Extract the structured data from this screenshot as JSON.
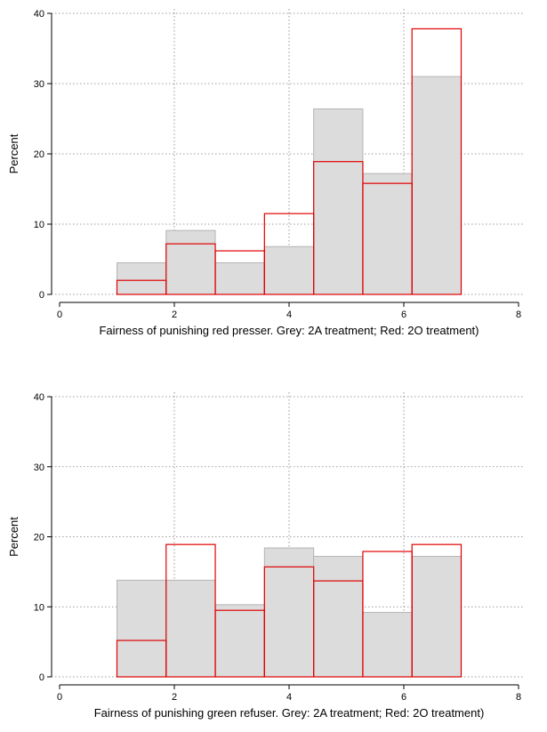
{
  "chart_data": [
    {
      "type": "bar",
      "xlabel": "Fairness of punishing red presser. Grey: 2A treatment; Red: 2O treatment)",
      "ylabel": "Percent",
      "xlim": [
        0,
        8
      ],
      "ylim": [
        0,
        40
      ],
      "xticks": [
        "0",
        "2",
        "4",
        "6",
        "8"
      ],
      "yticks": [
        "0",
        "10",
        "20",
        "30",
        "40"
      ],
      "bin_edges": [
        1.0,
        1.857,
        2.714,
        3.571,
        4.429,
        5.286,
        6.143,
        7.0
      ],
      "series": [
        {
          "name": "2A treatment",
          "color": "#dcdcdc",
          "values": [
            4.5,
            9.1,
            4.5,
            6.8,
            26.4,
            17.2,
            31.0
          ]
        },
        {
          "name": "2O treatment",
          "color": "#e00000",
          "values": [
            2.0,
            7.2,
            6.2,
            11.5,
            18.9,
            15.8,
            37.8
          ]
        }
      ],
      "grid": true
    },
    {
      "type": "bar",
      "xlabel": "Fairness of punishing green refuser. Grey: 2A treatment; Red: 2O treatment)",
      "ylabel": "Percent",
      "xlim": [
        0,
        8
      ],
      "ylim": [
        0,
        40
      ],
      "xticks": [
        "0",
        "2",
        "4",
        "6",
        "8"
      ],
      "yticks": [
        "0",
        "10",
        "20",
        "30",
        "40"
      ],
      "bin_edges": [
        1.0,
        1.857,
        2.714,
        3.571,
        4.429,
        5.286,
        6.143,
        7.0
      ],
      "series": [
        {
          "name": "2A treatment",
          "color": "#dcdcdc",
          "values": [
            13.8,
            13.8,
            10.3,
            18.4,
            17.2,
            9.2,
            17.2
          ]
        },
        {
          "name": "2O treatment",
          "color": "#e00000",
          "values": [
            5.2,
            18.9,
            9.5,
            15.7,
            13.7,
            17.9,
            18.9
          ]
        }
      ],
      "grid": true
    }
  ]
}
